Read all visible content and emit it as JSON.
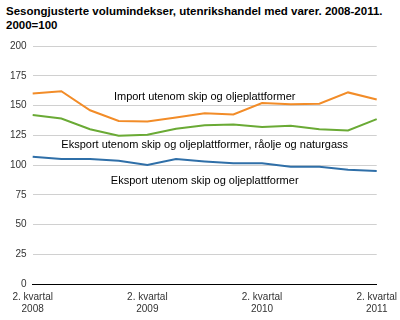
{
  "chart_data": {
    "type": "line",
    "title": "Sesongjusterte volumindekser, utenrikshandel med varer. 2008-2011. 2000=100",
    "categories": [
      "2. kvartal 2008",
      null,
      null,
      null,
      "2. kvartal 2009",
      null,
      null,
      null,
      "2. kvartal 2010",
      null,
      null,
      null,
      "2. kvartal 2011"
    ],
    "series": [
      {
        "name": "Import utenom skip og oljeplattformer",
        "color": "#f28c28",
        "values": [
          160,
          162,
          146,
          137,
          136.5,
          140,
          143.5,
          142.5,
          152,
          151,
          151.5,
          161,
          155
        ]
      },
      {
        "name": "Eksport utenom skip og oljeplattformer, råolje og naturgass",
        "color": "#6aaa35",
        "values": [
          142,
          139,
          130,
          124.5,
          125.5,
          130.5,
          133.5,
          134,
          132,
          133,
          130,
          129,
          138.5
        ]
      },
      {
        "name": "Eksport utenom skip og oljeplattformer",
        "color": "#2f6fa8",
        "values": [
          107,
          105,
          105,
          103.5,
          100,
          105,
          103,
          101.5,
          101.5,
          98.5,
          98.5,
          96,
          95
        ]
      }
    ],
    "ylim": [
      0,
      200
    ],
    "yticks": [
      0,
      25,
      50,
      75,
      100,
      125,
      150,
      175,
      200
    ],
    "grid": true
  }
}
